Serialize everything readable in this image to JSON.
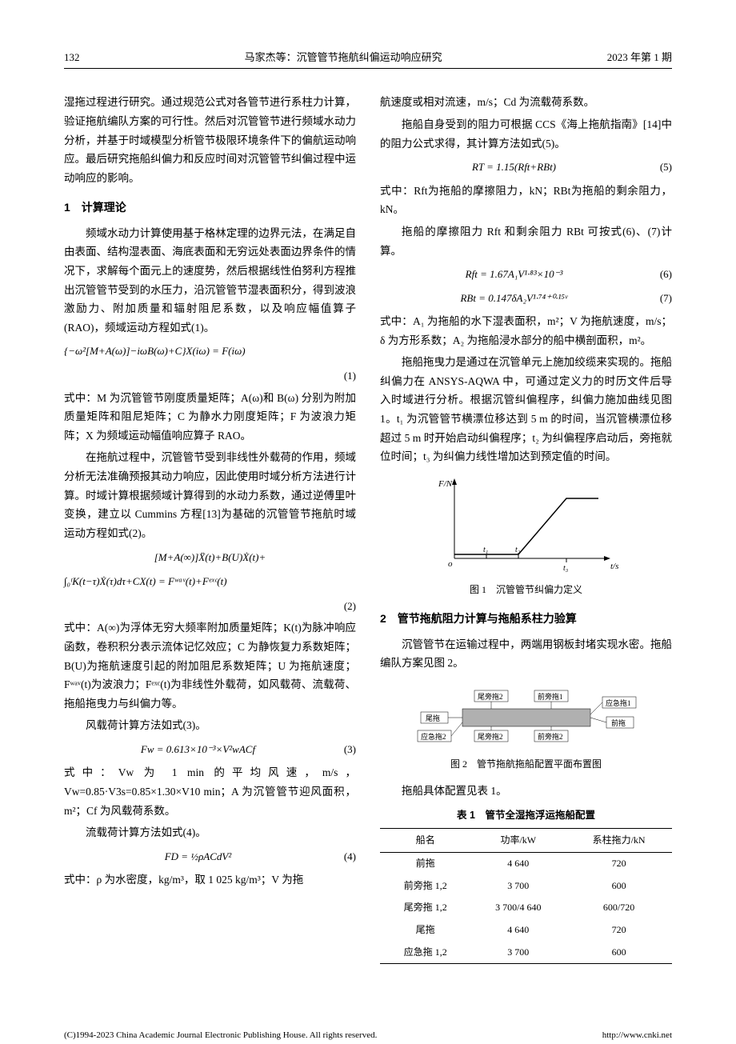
{
  "header": {
    "page_num": "132",
    "title": "马家杰等：沉管管节拖航纠偏运动响应研究",
    "issue": "2023 年第 1 期"
  },
  "left": {
    "intro": "湿拖过程进行研究。通过规范公式对各管节进行系柱力计算，验证拖航编队方案的可行性。然后对沉管管节进行频域水动力分析，并基于时域模型分析管节极限环境条件下的偏航运动响应。最后研究拖船纠偏力和反应时间对沉管管节纠偏过程中运动响应的影响。",
    "section1_title": "1　计算理论",
    "p1": "频域水动力计算使用基于格林定理的边界元法，在满足自由表面、结构湿表面、海底表面和无穷远处表面边界条件的情况下，求解每个面元上的速度势，然后根据线性伯努利方程推出沉管管节受到的水压力，沿沉管管节湿表面积分，得到波浪激励力、附加质量和辐射阻尼系数，以及响应幅值算子(RAO)，频域运动方程如式(1)。",
    "eq1": "{−ω²[M+A(ω)]−iωB(ω)+C}X(iω) = F(iω)",
    "eq1_num": "(1)",
    "p2": "式中：M 为沉管管节刚度质量矩阵；A(ω)和 B(ω) 分别为附加质量矩阵和阻尼矩阵；C 为静水力刚度矩阵；F 为波浪力矩阵；X 为频域运动幅值响应算子 RAO。",
    "p3": "在拖航过程中，沉管管节受到非线性外载荷的作用，频域分析无法准确预报其动力响应，因此使用时域分析方法进行计算。时域计算根据频域计算得到的水动力系数，通过逆傅里叶变换，建立以 Cummins 方程[13]为基础的沉管管节拖航时域运动方程如式(2)。",
    "eq2_line1": "[M+A(∞)]Ẍ(t)+B(U)Ẋ(t)+",
    "eq2_line2": "∫₀ᵗK(t−τ)Ẋ(τ)dτ+CX(t) = Fʷᵃᵛ(t)+Fᵉˣᶜ(t)",
    "eq2_num": "(2)",
    "p4": "式中：A(∞)为浮体无穷大频率附加质量矩阵；K(t)为脉冲响应函数，卷积积分表示流体记忆效应；C 为静恢复力系数矩阵；B(U)为拖航速度引起的附加阻尼系数矩阵；U 为拖航速度；Fʷᵃᵛ(t)为波浪力；Fᵉˣᶜ(t)为非线性外载荷，如风载荷、流载荷、拖船拖曳力与纠偏力等。",
    "p5": "风载荷计算方法如式(3)。",
    "eq3": "Fw = 0.613×10⁻³×V²wACf",
    "eq3_num": "(3)",
    "p6": "式中：Vw 为 1 min 的平均风速，m/s，Vw=0.85·V3s=0.85×1.30×V10 min；A 为沉管管节迎风面积，m²；Cf 为风载荷系数。",
    "p7": "流载荷计算方法如式(4)。",
    "eq4": "FD = ½ρACdV²",
    "eq4_num": "(4)",
    "p8": "式中：ρ 为水密度，kg/m³，取 1 025 kg/m³；V 为拖"
  },
  "right": {
    "p1": "航速度或相对流速，m/s；Cd 为流载荷系数。",
    "p2": "拖船自身受到的阻力可根据 CCS《海上拖航指南》[14]中的阻力公式求得，其计算方法如式(5)。",
    "eq5": "RT = 1.15(Rft+RBt)",
    "eq5_num": "(5)",
    "p3": "式中：Rft为拖船的摩擦阻力，kN；RBt为拖船的剩余阻力，kN。",
    "p4": "拖船的摩擦阻力 Rft 和剩余阻力 RBt 可按式(6)、(7)计算。",
    "eq6": "Rft = 1.67A₁V¹·⁸³×10⁻³",
    "eq6_num": "(6)",
    "eq7": "RBt = 0.147δA₂V¹·⁷⁴⁺⁰·¹⁵ᵛ",
    "eq7_num": "(7)",
    "p5": "式中：A₁ 为拖船的水下湿表面积，m²；V 为拖航速度，m/s；δ 为方形系数；A₂ 为拖船浸水部分的船中横剖面积，m²。",
    "p6": "拖船拖曳力是通过在沉管单元上施加绞缆来实现的。拖船纠偏力在 ANSYS-AQWA 中，可通过定义力的时历文件后导入时域进行分析。根据沉管纠偏程序，纠偏力施加曲线见图 1。t₁ 为沉管管节横漂位移达到 5 m 的时间，当沉管横漂位移超过 5 m 时开始启动纠偏程序；t₂ 为纠偏程序启动后，旁拖就位时间；t₃ 为纠偏力线性增加达到预定值的时间。",
    "fig1_caption": "图 1　沉管管节纠偏力定义",
    "fig1_ylabel": "F/N",
    "fig1_xlabel": "t/s",
    "fig1_t1": "t₁",
    "fig1_t2": "t₂",
    "fig1_t3": "t₃",
    "section2_title": "2　管节拖航阻力计算与拖船系柱力验算",
    "p7": "沉管管节在运输过程中，两端用钢板封堵实现水密。拖船编队方案见图 2。",
    "fig2_caption": "图 2　管节拖航拖船配置平面布置图",
    "fig2_labels": {
      "rear_side2": "尾旁拖2",
      "rear_side1": "前旁拖1",
      "emergency1": "应急拖1",
      "rear": "尾拖",
      "front": "前拖",
      "emergency2": "应急拖2",
      "rs2_bot": "尾旁拖2",
      "fs2": "前旁拖2"
    },
    "p8": "拖船具体配置见表 1。",
    "table1_title": "表 1　管节全湿拖浮运拖船配置",
    "table1": {
      "headers": [
        "船名",
        "功率/kW",
        "系柱拖力/kN"
      ],
      "rows": [
        [
          "前拖",
          "4 640",
          "720"
        ],
        [
          "前旁拖 1,2",
          "3 700",
          "600"
        ],
        [
          "尾旁拖 1,2",
          "3 700/4 640",
          "600/720"
        ],
        [
          "尾拖",
          "4 640",
          "720"
        ],
        [
          "应急拖 1,2",
          "3 700",
          "600"
        ]
      ]
    }
  },
  "footer": {
    "left": "(C)1994-2023 China Academic Journal Electronic Publishing House. All rights reserved.",
    "right": "http://www.cnki.net"
  },
  "colors": {
    "text": "#000000",
    "border": "#000000",
    "tug_fill": "#b0b0b0"
  }
}
